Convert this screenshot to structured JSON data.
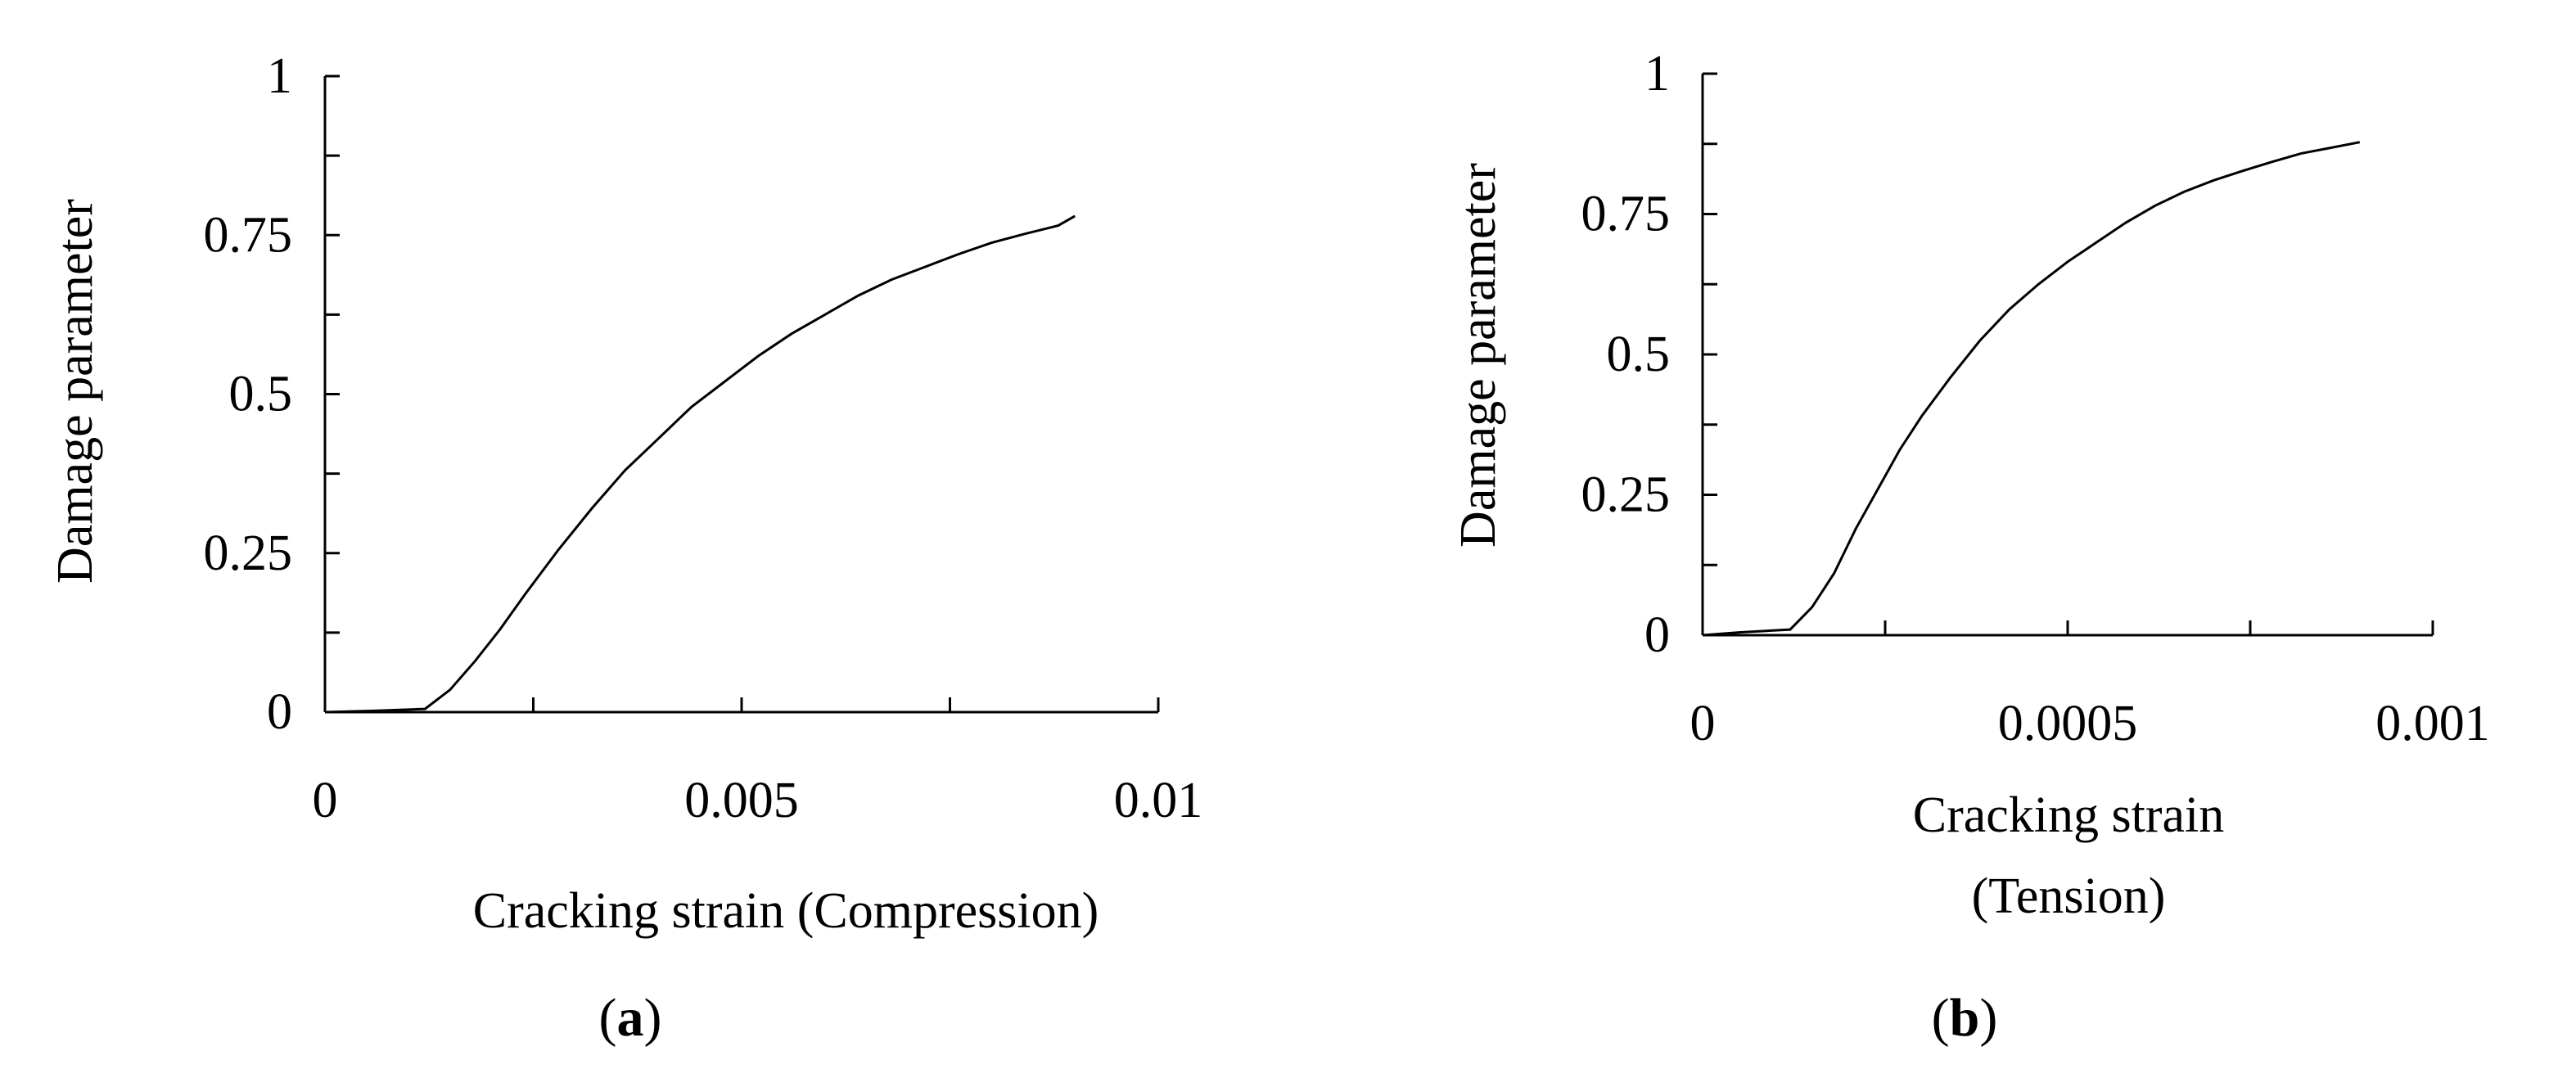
{
  "chart_data": [
    {
      "type": "line",
      "panel_label": "a",
      "xlabel": "Cracking strain (Compression)",
      "ylabel": "Damage parameter",
      "xlim": [
        0,
        0.01
      ],
      "ylim": [
        0,
        1
      ],
      "x_ticks": [
        0,
        0.005,
        0.01
      ],
      "x_tick_labels": [
        "0",
        "0.005",
        "0.01"
      ],
      "x_minor_step": 0.0025,
      "y_ticks": [
        0,
        0.25,
        0.5,
        0.75,
        1
      ],
      "y_tick_labels": [
        "0",
        "0.25",
        "0.5",
        "0.75",
        "1"
      ],
      "y_minor_step": 0.125,
      "grid": false,
      "series": [
        {
          "x": [
            0,
            0.0006,
            0.0012,
            0.0015,
            0.0018,
            0.0021,
            0.0024,
            0.0028,
            0.0032,
            0.0036,
            0.004,
            0.0044,
            0.0048,
            0.0052,
            0.0056,
            0.006,
            0.0064,
            0.0068,
            0.0072,
            0.0076,
            0.008,
            0.0084,
            0.0088,
            0.009
          ],
          "y": [
            0,
            0.002,
            0.005,
            0.035,
            0.08,
            0.13,
            0.185,
            0.255,
            0.32,
            0.38,
            0.43,
            0.48,
            0.52,
            0.56,
            0.595,
            0.625,
            0.655,
            0.68,
            0.7,
            0.72,
            0.738,
            0.752,
            0.765,
            0.78
          ]
        }
      ]
    },
    {
      "type": "line",
      "panel_label": "b",
      "xlabel": "Cracking strain",
      "xlabel_line2": "(Tension)",
      "ylabel": "Damage parameter",
      "xlim": [
        0,
        0.001
      ],
      "ylim": [
        0,
        1
      ],
      "x_ticks": [
        0,
        0.0005,
        0.001
      ],
      "x_tick_labels": [
        "0",
        "0.0005",
        "0.001"
      ],
      "x_minor_step": 0.00025,
      "y_ticks": [
        0,
        0.25,
        0.5,
        0.75,
        1
      ],
      "y_tick_labels": [
        "0",
        "0.25",
        "0.5",
        "0.75",
        "1"
      ],
      "y_minor_step": 0.125,
      "grid": false,
      "series": [
        {
          "x": [
            0,
            5e-05,
            0.00012,
            0.00015,
            0.00018,
            0.00021,
            0.00024,
            0.00027,
            0.0003,
            0.00034,
            0.00038,
            0.00042,
            0.00046,
            0.0005,
            0.00054,
            0.00058,
            0.00062,
            0.00066,
            0.0007,
            0.00074,
            0.00078,
            0.00082,
            0.00086,
            0.0009
          ],
          "y": [
            0,
            0.005,
            0.01,
            0.05,
            0.11,
            0.19,
            0.26,
            0.33,
            0.39,
            0.46,
            0.525,
            0.58,
            0.625,
            0.665,
            0.7,
            0.735,
            0.765,
            0.79,
            0.81,
            0.827,
            0.843,
            0.858,
            0.868,
            0.878
          ]
        }
      ]
    }
  ]
}
